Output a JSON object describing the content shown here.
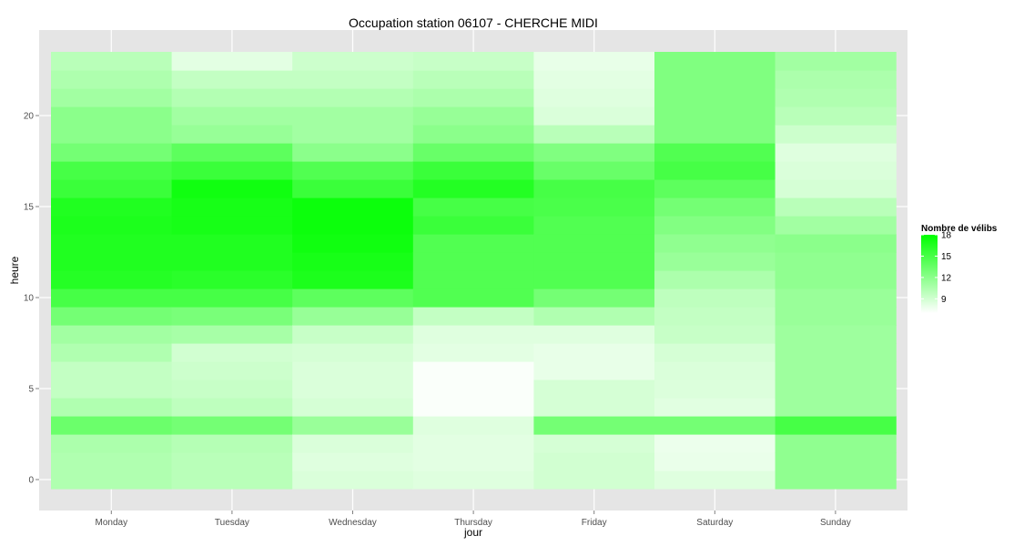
{
  "chart_data": {
    "type": "heatmap",
    "title": "Occupation station 06107 - CHERCHE MIDI",
    "xlabel": "jour",
    "ylabel": "heure",
    "categories": [
      "Monday",
      "Tuesday",
      "Wednesday",
      "Thursday",
      "Friday",
      "Saturday",
      "Sunday"
    ],
    "hours": [
      0,
      1,
      2,
      3,
      4,
      5,
      6,
      7,
      8,
      9,
      10,
      11,
      12,
      13,
      14,
      15,
      16,
      17,
      18,
      19,
      20,
      21,
      22,
      23
    ],
    "ylim": [
      -0.5,
      23.5
    ],
    "y_ticks": [
      0,
      5,
      10,
      15,
      20
    ],
    "grid": true,
    "color_scale": {
      "low": "#ffffff",
      "high": "#00ff00",
      "min": 7,
      "max": 18
    },
    "legend": {
      "title": "Nombre de vélibs",
      "ticks": [
        9,
        12,
        15,
        18
      ],
      "position": "right"
    },
    "values": [
      [
        10.4,
        10.4,
        10.6,
        13.4,
        10.4,
        9.6,
        9.6,
        10.4,
        11.0,
        13.0,
        15.0,
        16.4,
        16.6,
        16.6,
        16.8,
        16.6,
        15.5,
        15.0,
        13.0,
        12.0,
        12.0,
        11.0,
        10.5,
        10.0
      ],
      [
        10.0,
        10.0,
        10.2,
        13.0,
        9.8,
        9.4,
        9.2,
        9.0,
        10.8,
        12.8,
        15.0,
        16.2,
        16.6,
        16.6,
        17.0,
        17.0,
        17.3,
        15.5,
        14.0,
        11.5,
        11.0,
        10.3,
        9.6,
        8.2
      ],
      [
        8.6,
        8.4,
        8.6,
        11.4,
        8.8,
        8.6,
        8.6,
        8.8,
        9.4,
        11.5,
        14.0,
        16.8,
        17.0,
        17.3,
        17.5,
        17.5,
        15.5,
        14.5,
        12.0,
        11.0,
        11.0,
        10.3,
        9.6,
        9.2
      ],
      [
        8.4,
        8.2,
        8.2,
        8.4,
        7.2,
        7.2,
        7.2,
        8.2,
        8.4,
        9.6,
        14.5,
        14.5,
        14.5,
        14.5,
        15.5,
        15.0,
        16.5,
        15.5,
        13.5,
        12.0,
        11.5,
        10.6,
        10.0,
        9.4
      ],
      [
        9.0,
        9.0,
        8.8,
        13.0,
        8.8,
        8.8,
        8.0,
        8.0,
        8.4,
        10.4,
        13.0,
        14.5,
        14.5,
        14.5,
        14.5,
        14.8,
        15.0,
        13.5,
        12.5,
        10.0,
        8.6,
        8.4,
        8.2,
        8.0
      ],
      [
        8.4,
        7.9,
        7.8,
        13.0,
        8.3,
        8.5,
        8.6,
        8.8,
        9.4,
        9.6,
        9.8,
        10.6,
        11.4,
        11.8,
        12.4,
        13.0,
        14.0,
        15.0,
        14.5,
        12.5,
        12.5,
        12.5,
        12.5,
        12.5
      ],
      [
        11.8,
        11.8,
        11.8,
        15.0,
        11.2,
        11.2,
        11.2,
        11.2,
        11.2,
        11.4,
        11.4,
        11.8,
        11.8,
        12.0,
        11.0,
        10.0,
        8.8,
        8.6,
        8.4,
        9.2,
        10.0,
        10.4,
        10.6,
        11.0
      ]
    ]
  }
}
